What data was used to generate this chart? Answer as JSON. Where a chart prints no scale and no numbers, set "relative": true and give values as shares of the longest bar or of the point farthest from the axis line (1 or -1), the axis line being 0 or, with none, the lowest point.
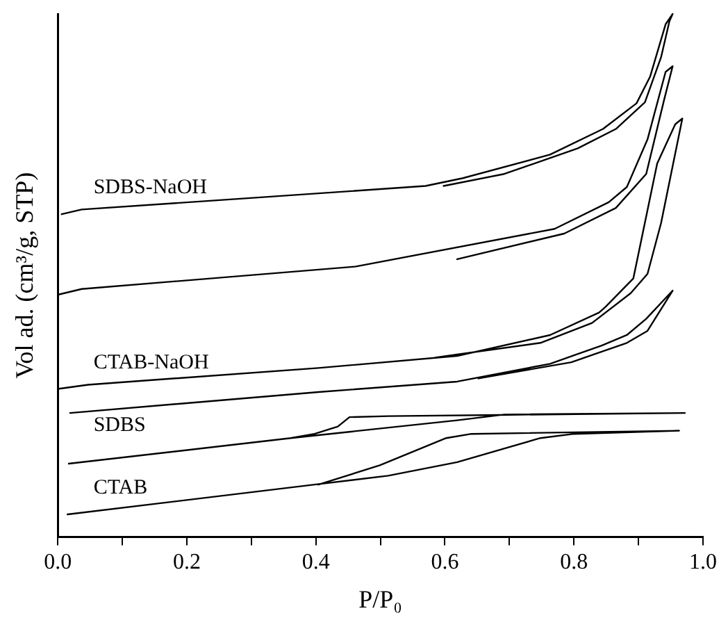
{
  "chart_data": {
    "type": "line",
    "relative": true,
    "xlabel": "P/P₀",
    "ylabel": "Vol ad. (cm³/g, STP)",
    "xlim": [
      0,
      1
    ],
    "xticks": [
      {
        "value": 0,
        "label": "0.0"
      },
      {
        "value": 0.1,
        "label": null
      },
      {
        "value": 0.2,
        "label": "0.2"
      },
      {
        "value": 0.3,
        "label": null
      },
      {
        "value": 0.4,
        "label": "0.4"
      },
      {
        "value": 0.5,
        "label": null
      },
      {
        "value": 0.6,
        "label": "0.6"
      },
      {
        "value": 0.7,
        "label": null
      },
      {
        "value": 0.8,
        "label": "0.8"
      },
      {
        "value": 0.9,
        "label": null
      },
      {
        "value": 1,
        "label": "1.0"
      }
    ],
    "grid": false,
    "legend": false,
    "marker": "none",
    "line_style": "solid",
    "series": [
      {
        "name": "SDBS-NaOH",
        "color": "#000000",
        "x": [
          0.006,
          0.037,
          0.275,
          0.57,
          0.628,
          0.763,
          0.845,
          0.897,
          0.918,
          0.942,
          0.953,
          0.948,
          0.935,
          0.91,
          0.865,
          0.806,
          0.692,
          0.598
        ],
        "values": [
          0.617,
          0.626,
          0.646,
          0.671,
          0.686,
          0.731,
          0.78,
          0.829,
          0.88,
          0.98,
          1.0,
          0.986,
          0.917,
          0.831,
          0.78,
          0.743,
          0.694,
          0.671
        ]
      },
      {
        "color": "#000000",
        "x": [
          0,
          0.037,
          0.462,
          0.77,
          0.854,
          0.882,
          0.914,
          0.942,
          0.953,
          0.94,
          0.912,
          0.865,
          0.785,
          0.619
        ],
        "values": [
          0.463,
          0.474,
          0.517,
          0.589,
          0.64,
          0.669,
          0.76,
          0.889,
          0.9,
          0.837,
          0.694,
          0.629,
          0.58,
          0.531
        ]
      },
      {
        "name": "CTAB-NaOH",
        "color": "#000000",
        "x": [
          0,
          0.047,
          0.404,
          0.619,
          0.763,
          0.839,
          0.849,
          0.892,
          0.929,
          0.957,
          0.968,
          0.935,
          0.914,
          0.888,
          0.828,
          0.748,
          0.585
        ],
        "values": [
          0.283,
          0.291,
          0.323,
          0.346,
          0.386,
          0.429,
          0.44,
          0.494,
          0.714,
          0.789,
          0.8,
          0.6,
          0.503,
          0.466,
          0.409,
          0.371,
          0.343
        ]
      },
      {
        "name": "SDBS",
        "color": "#000000",
        "x": [
          0.019,
          0.404,
          0.619,
          0.763,
          0.843,
          0.882,
          0.912,
          0.953,
          0.914,
          0.882,
          0.796,
          0.652
        ],
        "values": [
          0.237,
          0.277,
          0.297,
          0.331,
          0.366,
          0.386,
          0.417,
          0.471,
          0.394,
          0.371,
          0.334,
          0.303
        ]
      },
      {
        "color": "#000000",
        "x": [
          0.017,
          0.361,
          0.619,
          0.692,
          0.972,
          0.512,
          0.452,
          0.434,
          0.398,
          0.361
        ],
        "values": [
          0.14,
          0.189,
          0.223,
          0.234,
          0.237,
          0.231,
          0.229,
          0.211,
          0.197,
          0.189
        ]
      },
      {
        "name": "CTAB",
        "color": "#000000",
        "x": [
          0.015,
          0.398,
          0.512,
          0.619,
          0.748,
          0.8,
          0.963,
          0.641,
          0.602,
          0.499,
          0.404
        ],
        "values": [
          0.043,
          0.1,
          0.117,
          0.143,
          0.189,
          0.197,
          0.203,
          0.197,
          0.189,
          0.137,
          0.1
        ]
      }
    ]
  }
}
